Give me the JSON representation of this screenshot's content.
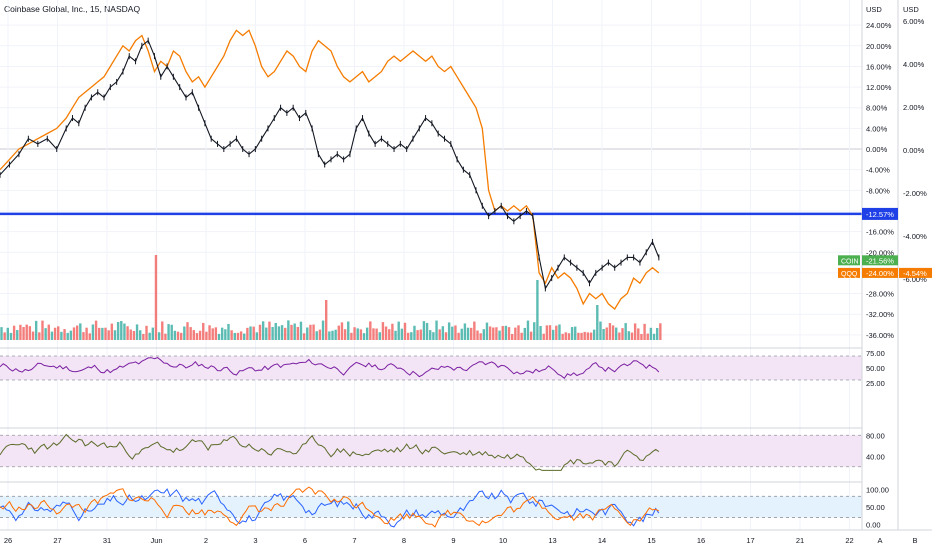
{
  "chart_data": {
    "type": "line",
    "title": "Coinbase Global, Inc., 15, NASDAQ",
    "colors": {
      "coin": "#131722",
      "qqq": "#f57c00",
      "up": "#26a69a",
      "down": "#ef5350",
      "hline": "#1e40e6",
      "rsi": "#7b1fa2",
      "cci": "#5b6b2a",
      "stoch_k": "#2962ff",
      "stoch_d": "#ff6d00"
    },
    "main": {
      "ylabel": "USD",
      "ylabel_secondary": "USD",
      "yticks": [
        "24.00%",
        "20.00%",
        "16.00%",
        "12.00%",
        "8.00%",
        "4.00%",
        "0.00%",
        "-4.00%",
        "-8.00%",
        "-12.00%",
        "-16.00%",
        "-20.00%",
        "-24.00%",
        "-28.00%",
        "-32.00%",
        "-36.00%"
      ],
      "yticks_secondary": [
        "8.00%",
        "6.00%",
        "4.00%",
        "2.00%",
        "0.00%",
        "-2.00%",
        "-4.00%",
        "-6.00%"
      ],
      "ylim": [
        -37,
        25
      ],
      "hline_value": -12.57,
      "hline_label": "-12.57%",
      "coin_label": "COIN",
      "coin_value": "-21.56%",
      "qqq_label": "QQQ",
      "qqq_value": "-24.00%",
      "qqq_secondary": "-4.54%",
      "coin_series": [
        [
          0,
          -5
        ],
        [
          3,
          -3
        ],
        [
          6,
          -1
        ],
        [
          9,
          2
        ],
        [
          12,
          1
        ],
        [
          15,
          2
        ],
        [
          18,
          0
        ],
        [
          21,
          4
        ],
        [
          23,
          6
        ],
        [
          25,
          5
        ],
        [
          27,
          8
        ],
        [
          29,
          10
        ],
        [
          31,
          11
        ],
        [
          33,
          10
        ],
        [
          35,
          12
        ],
        [
          37,
          13
        ],
        [
          39,
          15
        ],
        [
          41,
          18
        ],
        [
          43,
          17
        ],
        [
          45,
          20
        ],
        [
          47,
          21
        ],
        [
          49,
          18
        ],
        [
          51,
          14
        ],
        [
          53,
          16
        ],
        [
          55,
          14
        ],
        [
          57,
          12
        ],
        [
          59,
          10
        ],
        [
          61,
          11
        ],
        [
          63,
          8
        ],
        [
          65,
          5
        ],
        [
          67,
          2
        ],
        [
          69,
          1
        ],
        [
          71,
          0
        ],
        [
          73,
          1
        ],
        [
          75,
          2
        ],
        [
          77,
          0
        ],
        [
          79,
          -1
        ],
        [
          81,
          0
        ],
        [
          83,
          2
        ],
        [
          85,
          4
        ],
        [
          87,
          6
        ],
        [
          89,
          8
        ],
        [
          91,
          7
        ],
        [
          93,
          8
        ],
        [
          95,
          6
        ],
        [
          97,
          7
        ],
        [
          99,
          4
        ],
        [
          101,
          -1
        ],
        [
          103,
          -3
        ],
        [
          105,
          -2
        ],
        [
          107,
          -1
        ],
        [
          109,
          -2
        ],
        [
          111,
          -1
        ],
        [
          113,
          4
        ],
        [
          115,
          6
        ],
        [
          117,
          3
        ],
        [
          119,
          1
        ],
        [
          121,
          2
        ],
        [
          123,
          1
        ],
        [
          125,
          0
        ],
        [
          127,
          1
        ],
        [
          129,
          0
        ],
        [
          131,
          2
        ],
        [
          133,
          4
        ],
        [
          135,
          6
        ],
        [
          137,
          5
        ],
        [
          139,
          3
        ],
        [
          141,
          2
        ],
        [
          143,
          1
        ],
        [
          145,
          -2
        ],
        [
          147,
          -4
        ],
        [
          149,
          -5
        ],
        [
          151,
          -8
        ],
        [
          153,
          -11
        ],
        [
          155,
          -13
        ],
        [
          157,
          -12
        ],
        [
          159,
          -11
        ],
        [
          161,
          -13
        ],
        [
          163,
          -14
        ],
        [
          165,
          -13
        ],
        [
          167,
          -12
        ],
        [
          169,
          -13
        ],
        [
          171,
          -21
        ],
        [
          173,
          -27
        ],
        [
          175,
          -25
        ],
        [
          177,
          -23
        ],
        [
          179,
          -21
        ],
        [
          181,
          -22
        ],
        [
          183,
          -23
        ],
        [
          185,
          -24
        ],
        [
          187,
          -26
        ],
        [
          189,
          -24
        ],
        [
          191,
          -23
        ],
        [
          193,
          -22
        ],
        [
          195,
          -23
        ],
        [
          197,
          -22
        ],
        [
          199,
          -21
        ],
        [
          201,
          -21
        ],
        [
          203,
          -22
        ],
        [
          205,
          -20
        ],
        [
          207,
          -18
        ],
        [
          209,
          -21
        ]
      ],
      "qqq_series": [
        [
          0,
          -4
        ],
        [
          3,
          -2
        ],
        [
          6,
          0
        ],
        [
          9,
          1
        ],
        [
          12,
          2
        ],
        [
          15,
          3
        ],
        [
          18,
          4
        ],
        [
          21,
          6
        ],
        [
          23,
          8
        ],
        [
          25,
          10
        ],
        [
          27,
          11
        ],
        [
          29,
          12
        ],
        [
          31,
          13
        ],
        [
          33,
          14
        ],
        [
          35,
          16
        ],
        [
          37,
          18
        ],
        [
          39,
          20
        ],
        [
          41,
          19
        ],
        [
          43,
          21
        ],
        [
          45,
          22
        ],
        [
          47,
          19
        ],
        [
          49,
          15
        ],
        [
          51,
          17
        ],
        [
          53,
          16
        ],
        [
          55,
          19
        ],
        [
          57,
          18
        ],
        [
          59,
          15
        ],
        [
          61,
          13
        ],
        [
          63,
          14
        ],
        [
          65,
          12
        ],
        [
          67,
          14
        ],
        [
          69,
          16
        ],
        [
          71,
          18
        ],
        [
          73,
          21
        ],
        [
          75,
          23
        ],
        [
          77,
          22
        ],
        [
          79,
          23
        ],
        [
          81,
          20
        ],
        [
          83,
          16
        ],
        [
          85,
          14
        ],
        [
          87,
          15
        ],
        [
          89,
          17
        ],
        [
          91,
          19
        ],
        [
          93,
          18
        ],
        [
          95,
          16
        ],
        [
          97,
          15
        ],
        [
          99,
          19
        ],
        [
          101,
          21
        ],
        [
          103,
          20
        ],
        [
          105,
          19
        ],
        [
          107,
          16
        ],
        [
          109,
          14
        ],
        [
          111,
          13
        ],
        [
          113,
          14
        ],
        [
          115,
          15
        ],
        [
          117,
          13
        ],
        [
          119,
          14
        ],
        [
          121,
          15
        ],
        [
          123,
          17
        ],
        [
          125,
          18
        ],
        [
          127,
          17
        ],
        [
          129,
          18
        ],
        [
          131,
          19
        ],
        [
          133,
          18
        ],
        [
          135,
          17
        ],
        [
          137,
          18
        ],
        [
          139,
          16
        ],
        [
          141,
          15
        ],
        [
          143,
          16
        ],
        [
          145,
          14
        ],
        [
          147,
          12
        ],
        [
          149,
          10
        ],
        [
          151,
          8
        ],
        [
          153,
          4
        ],
        [
          155,
          -8
        ],
        [
          157,
          -12
        ],
        [
          159,
          -11
        ],
        [
          161,
          -12
        ],
        [
          163,
          -11
        ],
        [
          165,
          -12
        ],
        [
          167,
          -11
        ],
        [
          169,
          -13
        ],
        [
          171,
          -24
        ],
        [
          173,
          -26
        ],
        [
          175,
          -23
        ],
        [
          177,
          -25
        ],
        [
          179,
          -24
        ],
        [
          181,
          -25
        ],
        [
          183,
          -27
        ],
        [
          185,
          -30
        ],
        [
          187,
          -28
        ],
        [
          189,
          -29
        ],
        [
          191,
          -28
        ],
        [
          193,
          -30
        ],
        [
          195,
          -31
        ],
        [
          197,
          -29
        ],
        [
          199,
          -28
        ],
        [
          201,
          -25
        ],
        [
          203,
          -26
        ],
        [
          205,
          -24
        ],
        [
          207,
          -23
        ],
        [
          209,
          -24
        ]
      ]
    },
    "rsi": {
      "yticks": [
        "75.00",
        "50.00",
        "25.00"
      ],
      "ylim": [
        10,
        80
      ],
      "band": [
        30,
        70
      ]
    },
    "cci": {
      "yticks": [
        "80.00",
        "40.00"
      ],
      "ylim": [
        10,
        90
      ],
      "band": [
        20,
        80
      ]
    },
    "stoch": {
      "yticks": [
        "100.00",
        "50.00",
        "0.00"
      ],
      "ylim": [
        -10,
        115
      ],
      "band": [
        20,
        80
      ]
    },
    "xticks": [
      "26",
      "27",
      "31",
      "Jun",
      "2",
      "3",
      "6",
      "7",
      "8",
      "9",
      "10",
      "13",
      "14",
      "15",
      "16",
      "17",
      "21",
      "22"
    ],
    "xaxis_extra": [
      "A",
      "B"
    ]
  }
}
